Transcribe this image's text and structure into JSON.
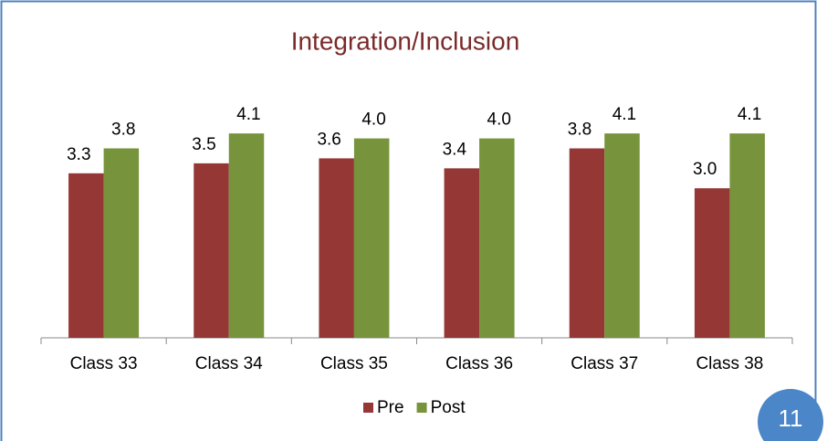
{
  "chart_data": {
    "type": "bar",
    "title": "Integration/Inclusion",
    "categories": [
      "Class 33",
      "Class 34",
      "Class 35",
      "Class 36",
      "Class 37",
      "Class 38"
    ],
    "series": [
      {
        "name": "Pre",
        "color": "#953735",
        "values": [
          3.3,
          3.5,
          3.6,
          3.4,
          3.8,
          3.0
        ],
        "value_labels": [
          "3.3",
          "3.5",
          "3.6",
          "3.4",
          "3.8",
          "3.0"
        ]
      },
      {
        "name": "Post",
        "color": "#77933c",
        "values": [
          3.8,
          4.1,
          4.0,
          4.0,
          4.1,
          4.1
        ],
        "value_labels": [
          "3.8",
          "4.1",
          "4.0",
          "4.0",
          "4.1",
          "4.1"
        ]
      }
    ],
    "ylim": [
      0,
      5
    ],
    "legend": "bottom"
  },
  "slide_number": "11"
}
